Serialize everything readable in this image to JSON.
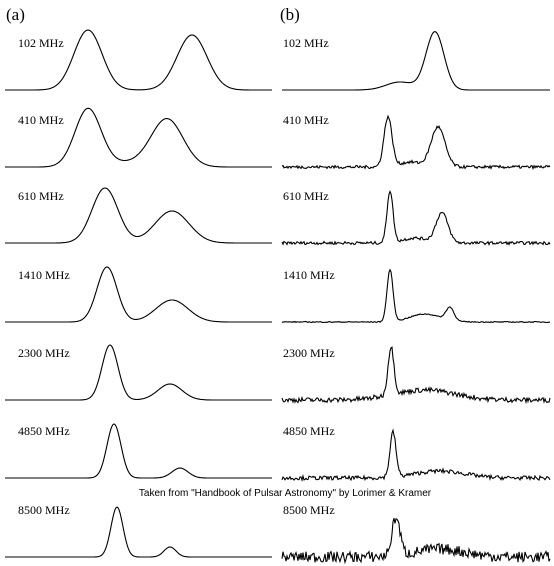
{
  "panels": [
    {
      "label": "(a)",
      "profiles": [
        "102 MHz",
        "410 MHz",
        "610 MHz",
        "1410 MHz",
        "2300 MHz",
        "4850 MHz",
        "8500 MHz"
      ]
    },
    {
      "label": "(b)",
      "profiles": [
        "102 MHz",
        "410 MHz",
        "610 MHz",
        "1410 MHz",
        "2300 MHz",
        "4850 MHz",
        "8500 MHz"
      ]
    }
  ],
  "caption": "Taken from \"Handbook of Pulsar Astronomy\" by Lorimer & Kramer"
}
